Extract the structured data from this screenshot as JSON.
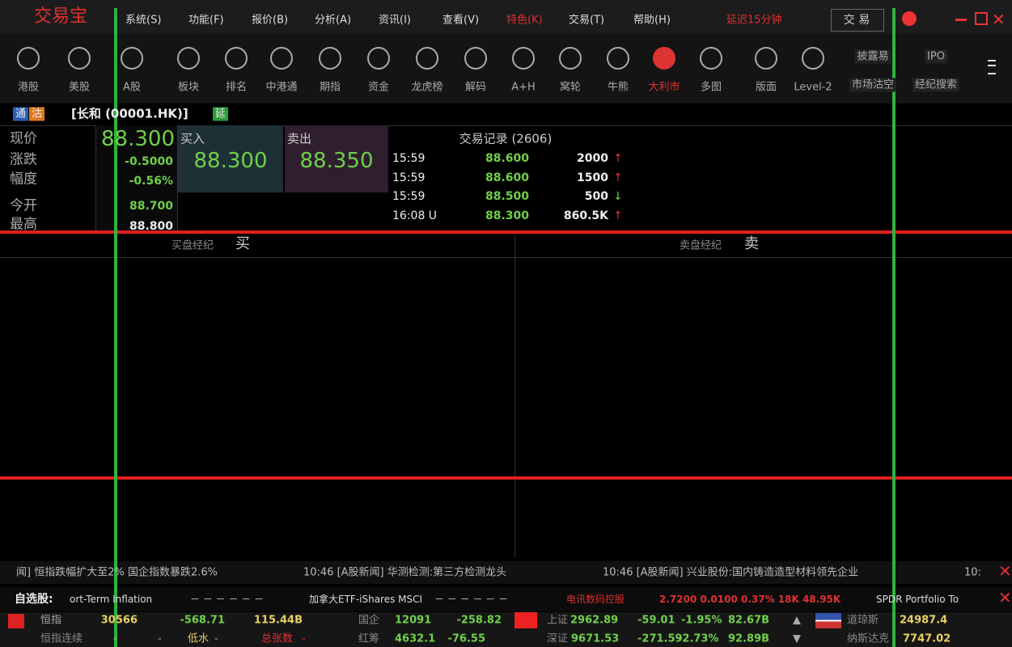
{
  "menu": {
    "logo": "交易宝",
    "items": [
      "系统(S)",
      "功能(F)",
      "报价(B)",
      "分析(A)",
      "资讯(I)",
      "查看(V)",
      "特色(K)",
      "交易(T)",
      "帮助(H)"
    ],
    "notice": "延迟15分钟",
    "trade_button": "交 易"
  },
  "toolbar": {
    "items": [
      "港股",
      "美股",
      "A股",
      "板块",
      "排名",
      "中港通",
      "期指",
      "资金",
      "龙虎榜",
      "解码",
      "A+H",
      "窝轮",
      "牛熊",
      "大利市",
      "多图",
      "版面",
      "Level-2"
    ],
    "right": [
      "披露易",
      "IPO",
      "市场沽空",
      "经纪搜索"
    ]
  },
  "stock": {
    "tags": [
      "通",
      "沽"
    ],
    "name": "[长和 (00001.HK)]",
    "delay_tag": "延"
  },
  "quote": {
    "labels": [
      "现价",
      "涨跌",
      "幅度",
      "今开",
      "最高"
    ],
    "values": [
      "88.300",
      "-0.5000",
      "-0.56%",
      "88.700",
      "88.800"
    ],
    "bid_label": "买入",
    "bid": "88.300",
    "ask_label": "卖出",
    "ask": "88.350",
    "trades_title": "交易记录 (2606)",
    "trades": [
      [
        "15:59",
        "88.600",
        "2000",
        "↑"
      ],
      [
        "15:59",
        "88.600",
        "1500",
        "↑"
      ],
      [
        "15:59",
        "88.500",
        "500",
        "↓"
      ],
      [
        "16:08 U",
        "88.300",
        "860.5K",
        "↑"
      ]
    ]
  },
  "brokers": {
    "buy_label": "买盘经纪",
    "buy_mark": "买",
    "sell_label": "卖盘经纪",
    "sell_mark": "卖"
  },
  "news": [
    "闻] 恒指跌幅扩大至2% 国企指数暴跌2.6%",
    "10:46 [A股新闻] 华测检测:第三方检测龙头",
    "10:46 [A股新闻] 兴业股份:国内铸造造型材料领先企业",
    "10:"
  ],
  "watchlist": {
    "label": "自选股:",
    "items": [
      "ort-Term Inflation",
      "－ － － － － －",
      "加拿大ETF-iShares MSCI",
      "－ － － － － －",
      "电讯数码控股",
      "2.7200 0.0100 0.37% 18K 48.95K",
      "SPDR Portfolio To"
    ]
  },
  "indices": {
    "row1": [
      "恒指",
      "30566",
      "-568.71",
      "115.44B",
      "国企",
      "12091",
      "-258.82",
      "上证",
      "2962.89",
      "-59.01",
      "-1.95%",
      "82.67B",
      "▲",
      "道琼斯",
      "24987.4"
    ],
    "row2": [
      "恒指连续",
      "-",
      "-",
      "低水",
      "-",
      "总张数",
      "-",
      "红筹",
      "4632.1",
      "-76.55",
      "深证",
      "9671.53",
      "-271.59",
      "-2.73%",
      "92.89B",
      "▼",
      "纳斯达克",
      "7747.02"
    ]
  }
}
